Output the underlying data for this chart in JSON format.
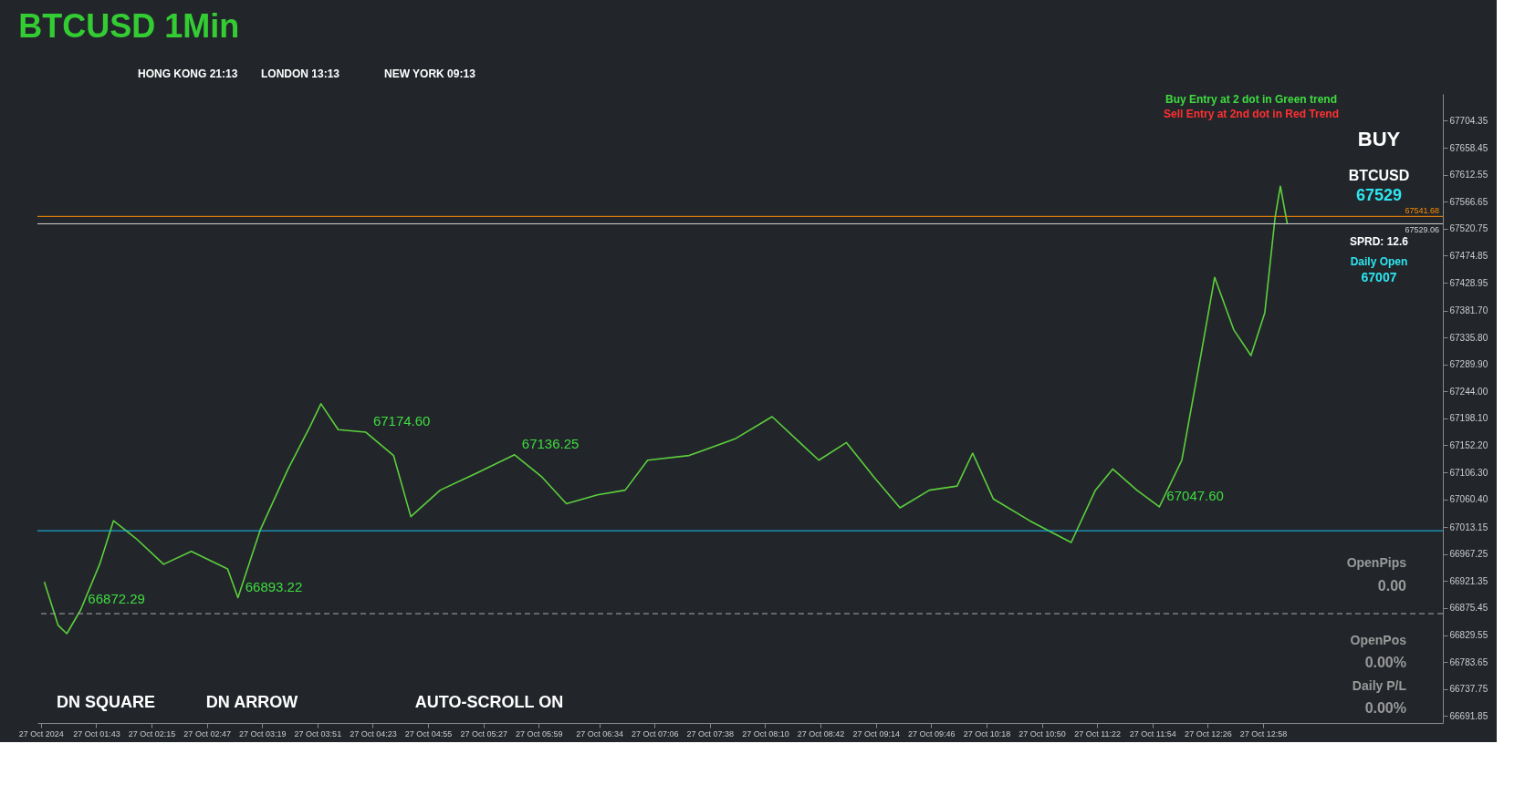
{
  "chart_data": {
    "type": "line",
    "title": "BTCUSD 1Min",
    "x": [
      "2024-10-27T01:13",
      "2024-10-27T01:21",
      "2024-10-27T01:26",
      "2024-10-27T01:34",
      "2024-10-27T01:45",
      "2024-10-27T01:53",
      "2024-10-27T02:06",
      "2024-10-27T02:22",
      "2024-10-27T02:38",
      "2024-10-27T02:59",
      "2024-10-27T03:05",
      "2024-10-27T03:18",
      "2024-10-27T03:34",
      "2024-10-27T03:47",
      "2024-10-27T03:53",
      "2024-10-27T04:03",
      "2024-10-27T04:19",
      "2024-10-27T04:35",
      "2024-10-27T04:45",
      "2024-10-27T05:02",
      "2024-10-27T05:23",
      "2024-10-27T05:45",
      "2024-10-27T06:01",
      "2024-10-27T06:15",
      "2024-10-27T06:33",
      "2024-10-27T06:49",
      "2024-10-27T07:02",
      "2024-10-27T07:26",
      "2024-10-27T07:53",
      "2024-10-27T08:14",
      "2024-10-27T08:30",
      "2024-10-27T08:41",
      "2024-10-27T08:57",
      "2024-10-27T09:13",
      "2024-10-27T09:28",
      "2024-10-27T09:45",
      "2024-10-27T10:01",
      "2024-10-27T10:10",
      "2024-10-27T10:22",
      "2024-10-27T10:43",
      "2024-10-27T11:07",
      "2024-10-27T11:21",
      "2024-10-27T11:31",
      "2024-10-27T11:45",
      "2024-10-27T11:58",
      "2024-10-27T12:11",
      "2024-10-27T12:22",
      "2024-10-27T12:30",
      "2024-10-27T12:41",
      "2024-10-27T12:51",
      "2024-10-27T12:59",
      "2024-10-27T13:05",
      "2024-10-27T13:08",
      "2024-10-27T13:12"
    ],
    "series": [
      {
        "color": "#5ccf3c",
        "values": [
          66920,
          66846,
          66832,
          66872.29,
          66950,
          67024,
          66994,
          66950,
          66972,
          66942,
          66893.22,
          67009,
          67112,
          67186,
          67223,
          67179,
          67174.6,
          67135,
          67031,
          67076,
          67105,
          67136.25,
          67098,
          67053,
          67068,
          67076,
          67127,
          67135,
          67164,
          67201,
          67157,
          67127,
          67157,
          67098,
          67046,
          67076,
          67083,
          67139,
          67061,
          67024,
          66987,
          67076,
          67112,
          67076,
          67047.6,
          67127,
          67305,
          67438,
          67349,
          67305,
          67378,
          67541,
          67593,
          67529
        ]
      }
    ],
    "xlim": [
      "2024-10-27T01:09",
      "2024-10-27T14:42"
    ],
    "xticks": [
      {
        "value": "2024-10-27T01:11",
        "label": "27 Oct 2024"
      },
      {
        "value": "2024-10-27T01:43",
        "label": "27 Oct 01:43"
      },
      {
        "value": "2024-10-27T02:15",
        "label": "27 Oct 02:15"
      },
      {
        "value": "2024-10-27T02:47",
        "label": "27 Oct 02:47"
      },
      {
        "value": "2024-10-27T03:19",
        "label": "27 Oct 03:19"
      },
      {
        "value": "2024-10-27T03:51",
        "label": "27 Oct 03:51"
      },
      {
        "value": "2024-10-27T04:23",
        "label": "27 Oct 04:23"
      },
      {
        "value": "2024-10-27T04:55",
        "label": "27 Oct 04:55"
      },
      {
        "value": "2024-10-27T05:27",
        "label": "27 Oct 05:27"
      },
      {
        "value": "2024-10-27T05:59",
        "label": "27 Oct 05:59"
      },
      {
        "value": "2024-10-27T06:34",
        "label": "27 Oct 06:34"
      },
      {
        "value": "2024-10-27T07:06",
        "label": "27 Oct 07:06"
      },
      {
        "value": "2024-10-27T07:38",
        "label": "27 Oct 07:38"
      },
      {
        "value": "2024-10-27T08:10",
        "label": "27 Oct 08:10"
      },
      {
        "value": "2024-10-27T08:42",
        "label": "27 Oct 08:42"
      },
      {
        "value": "2024-10-27T09:14",
        "label": "27 Oct 09:14"
      },
      {
        "value": "2024-10-27T09:46",
        "label": "27 Oct 09:46"
      },
      {
        "value": "2024-10-27T10:18",
        "label": "27 Oct 10:18"
      },
      {
        "value": "2024-10-27T10:50",
        "label": "27 Oct 10:50"
      },
      {
        "value": "2024-10-27T11:22",
        "label": "27 Oct 11:22"
      },
      {
        "value": "2024-10-27T11:54",
        "label": "27 Oct 11:54"
      },
      {
        "value": "2024-10-27T12:26",
        "label": "27 Oct 12:26"
      },
      {
        "value": "2024-10-27T12:58",
        "label": "27 Oct 12:58"
      }
    ],
    "ylim": [
      66680,
      67750
    ],
    "yticks": [
      {
        "value": 67704.35,
        "label": "67704.35"
      },
      {
        "value": 67658.45,
        "label": "67658.45"
      },
      {
        "value": 67612.55,
        "label": "67612.55"
      },
      {
        "value": 67566.65,
        "label": "67566.65"
      },
      {
        "value": 67520.75,
        "label": "67520.75"
      },
      {
        "value": 67474.85,
        "label": "67474.85"
      },
      {
        "value": 67428.95,
        "label": "67428.95"
      },
      {
        "value": 67381.7,
        "label": "67381.70"
      },
      {
        "value": 67335.8,
        "label": "67335.80"
      },
      {
        "value": 67289.9,
        "label": "67289.90"
      },
      {
        "value": 67244,
        "label": "67244.00"
      },
      {
        "value": 67198.1,
        "label": "67198.10"
      },
      {
        "value": 67152.2,
        "label": "67152.20"
      },
      {
        "value": 67106.3,
        "label": "67106.30"
      },
      {
        "value": 67060.4,
        "label": "67060.40"
      },
      {
        "value": 67013.15,
        "label": "67013.15"
      },
      {
        "value": 66967.25,
        "label": "66967.25"
      },
      {
        "value": 66921.35,
        "label": "66921.35"
      },
      {
        "value": 66875.45,
        "label": "66875.45"
      },
      {
        "value": 66829.55,
        "label": "66829.55"
      },
      {
        "value": 66783.65,
        "label": "66783.65"
      },
      {
        "value": 66737.75,
        "label": "66737.75"
      },
      {
        "value": 66691.85,
        "label": "66691.85"
      }
    ],
    "ref_lines": [
      {
        "axis": "y",
        "value": 67541.68,
        "label": "67541.68",
        "color": "#ff8c00"
      },
      {
        "axis": "y",
        "value": 67529.06,
        "label": "67529.06",
        "color": "#d0d0d0"
      },
      {
        "axis": "y",
        "value": 67007,
        "color": "#19c3f0"
      },
      {
        "axis": "y",
        "value": 66866,
        "color": "#aaaaaa",
        "line_style": "dashed"
      }
    ],
    "annotations": [
      {
        "text": "67174.60",
        "x": "2024-10-27T04:19",
        "y": 67174.6
      },
      {
        "text": "67136.25",
        "x": "2024-10-27T05:45",
        "y": 67136.25
      },
      {
        "text": "66893.22",
        "x": "2024-10-27T03:05",
        "y": 66893.22
      },
      {
        "text": "66872.29",
        "x": "2024-10-27T01:34",
        "y": 66872.29
      },
      {
        "text": "67047.60",
        "x": "2024-10-27T11:58",
        "y": 67047.6
      },
      "HONG KONG 21:13",
      "LONDON 13:13",
      "NEW YORK 09:13",
      "Buy Entry at 2 dot in Green trend",
      "Sell Entry at 2nd dot in Red Trend",
      "BUY",
      "BTCUSD",
      "67529",
      "SPRD: 12.6",
      "Daily Open",
      "67007",
      "OpenPips",
      "0.00",
      "OpenPos",
      "0.00%",
      "Daily P/L",
      "0.00%",
      "DN SQUARE",
      "DN ARROW",
      "AUTO-SCROLL ON"
    ],
    "grid": false,
    "marker": "none",
    "line_style": "solid"
  }
}
